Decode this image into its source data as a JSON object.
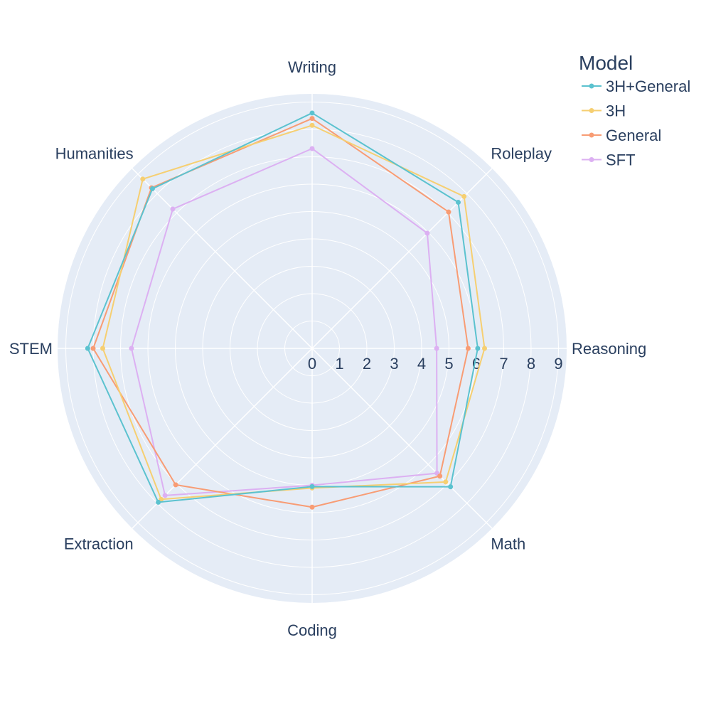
{
  "chart_data": {
    "type": "radar",
    "categories": [
      "Writing",
      "Roleplay",
      "Reasoning",
      "Math",
      "Coding",
      "Extraction",
      "STEM",
      "Humanities"
    ],
    "radial_range": [
      0,
      9.3
    ],
    "radial_ticks": [
      0,
      1,
      2,
      3,
      4,
      5,
      6,
      7,
      8,
      9
    ],
    "grid": true,
    "legend_title": "Model",
    "legend_position": "top-right",
    "series": [
      {
        "name": "3H+General",
        "color": "#5bc2cf",
        "values": [
          8.6,
          7.55,
          6.05,
          7.15,
          5.05,
          7.95,
          8.2,
          8.25
        ]
      },
      {
        "name": "3H",
        "color": "#f6cf71",
        "values": [
          8.15,
          7.85,
          6.3,
          6.9,
          5.1,
          7.8,
          7.65,
          8.75
        ]
      },
      {
        "name": "General",
        "color": "#f89c74",
        "values": [
          8.4,
          7.05,
          5.7,
          6.6,
          5.8,
          7.05,
          8.0,
          8.3
        ]
      },
      {
        "name": "SFT",
        "color": "#dcb0f2",
        "values": [
          7.3,
          5.95,
          4.55,
          6.45,
          5.0,
          7.6,
          6.6,
          7.2
        ]
      }
    ]
  }
}
